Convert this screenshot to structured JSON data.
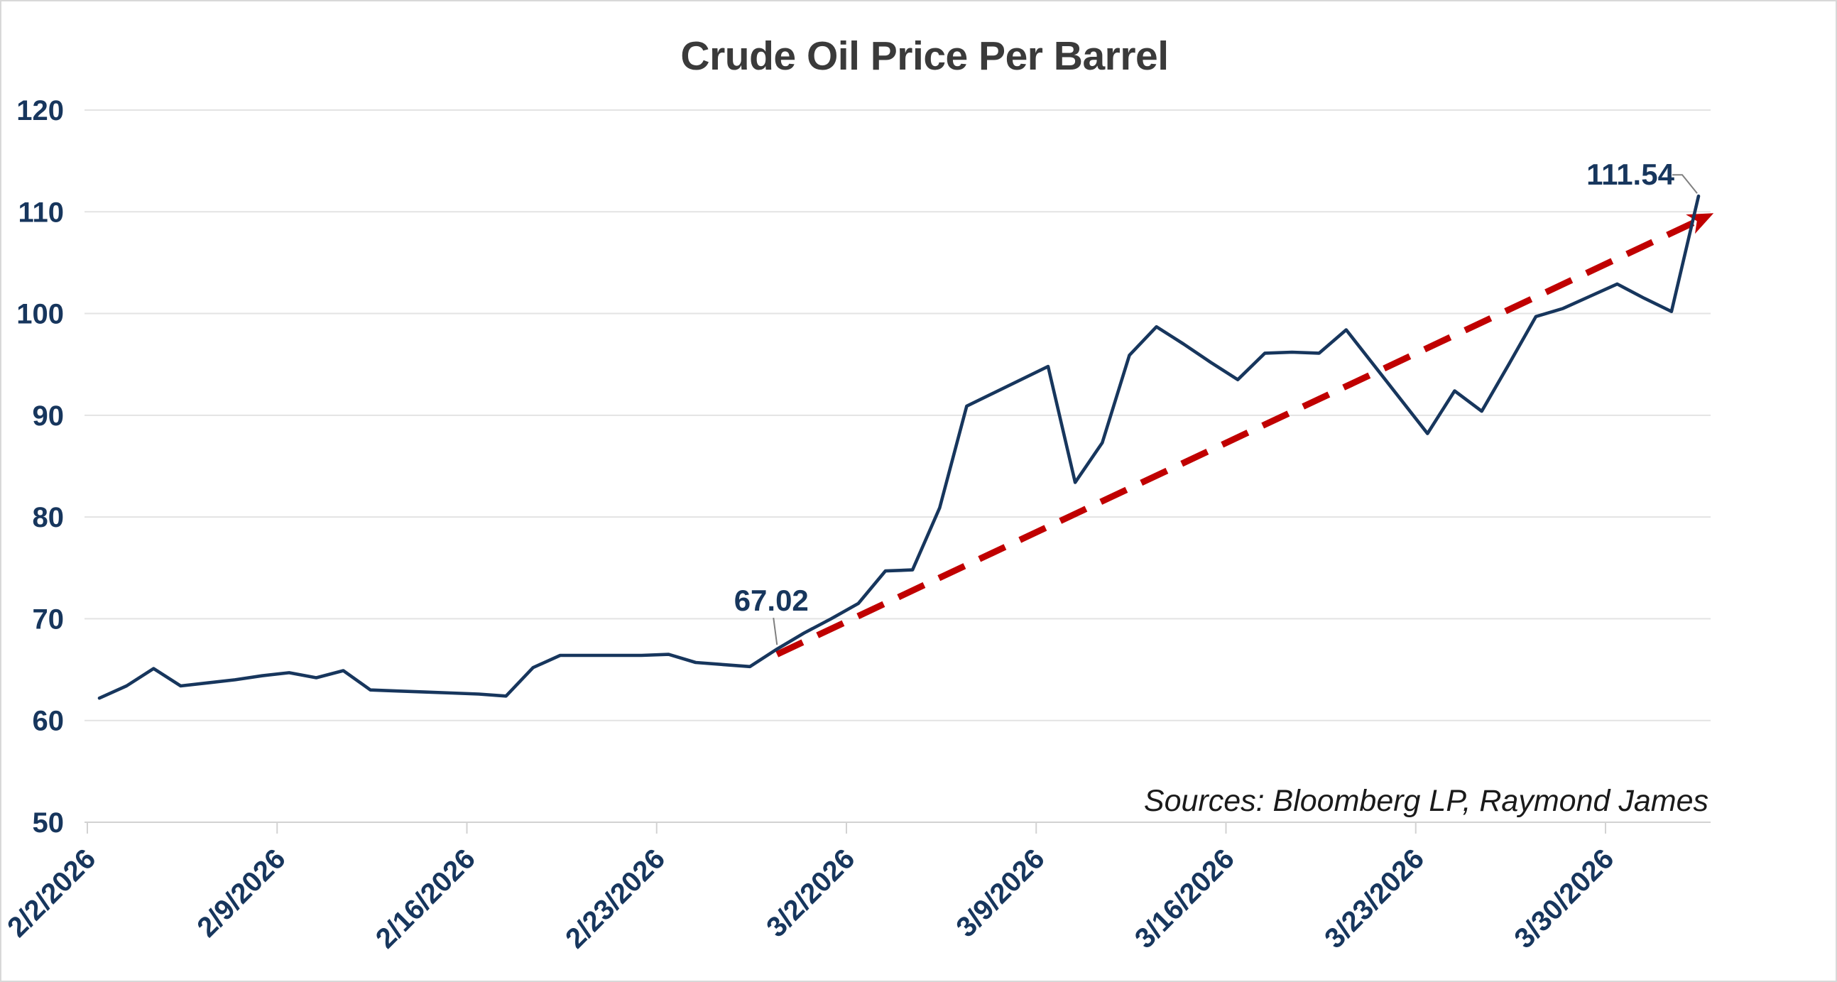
{
  "chart_data": {
    "type": "line",
    "title": "Crude Oil Price Per Barrel",
    "sources": "Sources: Bloomberg LP, Raymond James",
    "xlabel": "",
    "ylabel": "",
    "ylim": [
      50,
      120
    ],
    "y_tick_step": 10,
    "y_tick_labels": [
      "50",
      "60",
      "70",
      "80",
      "90",
      "100",
      "110",
      "120"
    ],
    "x_tick_labels": [
      "2/2/2026",
      "2/9/2026",
      "2/16/2026",
      "2/23/2026",
      "3/2/2026",
      "3/9/2026",
      "3/16/2026",
      "3/23/2026",
      "3/30/2026"
    ],
    "grid": "horizontal",
    "legend": "none",
    "dates": [
      "2/2/2026",
      "2/3/2026",
      "2/4/2026",
      "2/5/2026",
      "2/6/2026",
      "2/7/2026",
      "2/8/2026",
      "2/9/2026",
      "2/10/2026",
      "2/11/2026",
      "2/12/2026",
      "2/13/2026",
      "2/14/2026",
      "2/15/2026",
      "2/16/2026",
      "2/17/2026",
      "2/18/2026",
      "2/19/2026",
      "2/20/2026",
      "2/21/2026",
      "2/22/2026",
      "2/23/2026",
      "2/24/2026",
      "2/25/2026",
      "2/26/2026",
      "2/27/2026",
      "2/28/2026",
      "3/1/2026",
      "3/2/2026",
      "3/3/2026",
      "3/4/2026",
      "3/5/2026",
      "3/6/2026",
      "3/7/2026",
      "3/8/2026",
      "3/9/2026",
      "3/10/2026",
      "3/11/2026",
      "3/12/2026",
      "3/13/2026",
      "3/14/2026",
      "3/15/2026",
      "3/16/2026",
      "3/17/2026",
      "3/18/2026",
      "3/19/2026",
      "3/20/2026",
      "3/21/2026",
      "3/22/2026",
      "3/23/2026",
      "3/24/2026",
      "3/25/2026",
      "3/26/2026",
      "3/27/2026",
      "3/28/2026",
      "3/29/2026",
      "3/30/2026",
      "3/31/2026",
      "4/1/2026",
      "4/2/2026"
    ],
    "values": [
      62.2,
      63.4,
      65.1,
      63.4,
      63.7,
      64.0,
      64.4,
      64.7,
      64.2,
      64.9,
      63.0,
      62.9,
      62.8,
      62.7,
      62.6,
      62.4,
      65.2,
      66.4,
      66.4,
      66.4,
      66.4,
      66.5,
      65.7,
      65.5,
      65.3,
      67.02,
      68.6,
      70.0,
      71.5,
      74.7,
      74.8,
      80.9,
      90.9,
      92.2,
      93.5,
      94.8,
      83.4,
      87.3,
      95.9,
      98.7,
      97.0,
      95.2,
      93.5,
      96.1,
      96.2,
      96.1,
      98.4,
      95.0,
      91.6,
      88.2,
      92.4,
      90.4,
      95.0,
      99.7,
      100.5,
      101.7,
      102.9,
      101.5,
      100.2,
      111.54
    ],
    "annotations": [
      {
        "label": "67.02",
        "date": "2/27/2026",
        "value": 67.02,
        "index": 25
      },
      {
        "label": "111.54",
        "date": "4/2/2026",
        "value": 111.54,
        "index": 59
      }
    ],
    "trend_line": {
      "style": "dashed",
      "arrow": true,
      "start_date": "2/27/2026",
      "start_value": 66.5,
      "end_value": 109.5,
      "color": "#c00000"
    },
    "colors": {
      "series": "#17365d",
      "trend": "#c00000",
      "gridline": "#e3e3e3",
      "axis_line": "#d2d2d2",
      "axis_labels": "#17365d",
      "title": "#3a3a3a",
      "annotation_text": "#17365d",
      "leader_line": "#808080",
      "sources_text": "#1a1a1a",
      "background": "#ffffff"
    }
  }
}
